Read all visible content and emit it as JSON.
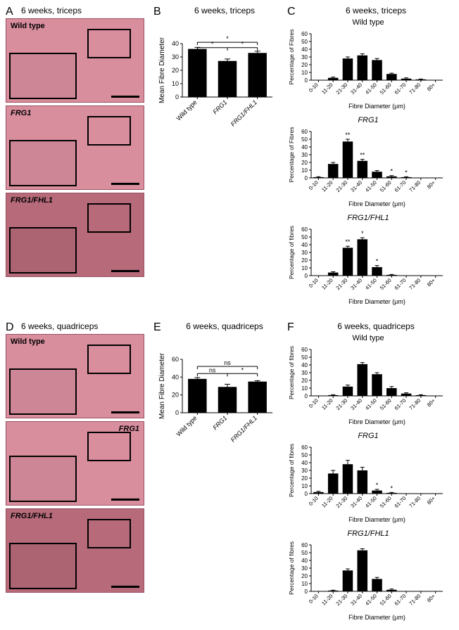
{
  "panels": {
    "A": {
      "letter": "A",
      "title": "6 weeks, triceps",
      "images": [
        {
          "label": "Wild type",
          "label_pos": "tl",
          "variant": "light"
        },
        {
          "label": "FRG1",
          "label_pos": "tl",
          "variant": "light",
          "italic": true
        },
        {
          "label": "FRG1/FHL1",
          "label_pos": "tl",
          "variant": "dark",
          "italic": true
        }
      ]
    },
    "B": {
      "letter": "B",
      "title": "6 weeks, triceps",
      "ylabel": "Mean Fibre Diameter",
      "ylim": [
        0,
        40
      ],
      "ytick_step": 10,
      "categories": [
        "Wild type",
        "FRG1",
        "FRG1/FHL1"
      ],
      "values": [
        36,
        27,
        33
      ],
      "errors": [
        1.2,
        1.5,
        1.3
      ],
      "bar_color": "#000000",
      "sig": [
        {
          "from": 0,
          "to": 1,
          "label": "*",
          "y": 37
        },
        {
          "from": 1,
          "to": 2,
          "label": "*",
          "y": 37
        },
        {
          "from": 0,
          "to": 2,
          "label": "*",
          "y": 41
        }
      ],
      "category_italic": [
        false,
        true,
        true
      ]
    },
    "C": {
      "letter": "C",
      "title": "6 weeks, triceps",
      "xlabel": "Fibre Diameter (μm)",
      "ylabel": "Percentage of Fibres",
      "bins": [
        "0-10",
        "11-20",
        "21-30",
        "31-40",
        "41-50",
        "51-60",
        "61-70",
        "71-80",
        "80+"
      ],
      "ylim": [
        0,
        60
      ],
      "ytick_step": 10,
      "subs": [
        {
          "name": "Wild type",
          "italic": false,
          "values": [
            0,
            3,
            28,
            32,
            26,
            8,
            2,
            1,
            0
          ],
          "errors": [
            0,
            1,
            2,
            2,
            2,
            1,
            1,
            0.5,
            0
          ],
          "sig": []
        },
        {
          "name": "FRG1",
          "italic": true,
          "values": [
            1,
            18,
            47,
            22,
            8,
            2,
            1,
            0,
            0
          ],
          "errors": [
            0.5,
            2,
            3,
            2,
            1.5,
            1,
            0.5,
            0,
            0
          ],
          "sig": [
            {
              "bin": 2,
              "label": "**"
            },
            {
              "bin": 3,
              "label": "**"
            },
            {
              "bin": 5,
              "label": "*"
            },
            {
              "bin": 6,
              "label": "*"
            }
          ],
          "ylabel": "Percentage of Fibres"
        },
        {
          "name": "FRG1/FHL1",
          "italic": true,
          "values": [
            0,
            4,
            36,
            47,
            11,
            1,
            0,
            0,
            0
          ],
          "errors": [
            0,
            1,
            2,
            2,
            2,
            0.5,
            0,
            0,
            0
          ],
          "sig": [
            {
              "bin": 2,
              "label": "**"
            },
            {
              "bin": 3,
              "label": "*"
            },
            {
              "bin": 4,
              "label": "*"
            }
          ],
          "ylabel": "Percentage of fibres"
        }
      ]
    },
    "D": {
      "letter": "D",
      "title": "6 weeks, quadriceps",
      "images": [
        {
          "label": "Wild type",
          "label_pos": "tl",
          "variant": "light"
        },
        {
          "label": "FRG1",
          "label_pos": "tr",
          "variant": "light",
          "italic": true
        },
        {
          "label": "FRG1/FHL1",
          "label_pos": "tl",
          "variant": "dark",
          "italic": true
        }
      ]
    },
    "E": {
      "letter": "E",
      "title": "6 weeks, quadriceps",
      "ylabel": "Mean Fibre Diameter",
      "ylim": [
        0,
        60
      ],
      "ytick_step": 20,
      "categories": [
        "Wild type",
        "FRG1",
        "FRG1/FHL1"
      ],
      "values": [
        38,
        29,
        35
      ],
      "errors": [
        1.5,
        3,
        1
      ],
      "bar_color": "#000000",
      "sig": [
        {
          "from": 0,
          "to": 1,
          "label": "ns",
          "y": 44
        },
        {
          "from": 1,
          "to": 2,
          "label": "*",
          "y": 44
        },
        {
          "from": 0,
          "to": 2,
          "label": "ns",
          "y": 52
        }
      ],
      "category_italic": [
        false,
        true,
        true
      ]
    },
    "F": {
      "letter": "F",
      "title": "6 weeks, quadriceps",
      "xlabel": "Fibre Diameter (μm)",
      "ylabel": "Percentage of fibres",
      "bins": [
        "0-10",
        "11-20",
        "21-30",
        "31-40",
        "41-50",
        "51-60",
        "61-70",
        "71-80",
        "80+"
      ],
      "ylim": [
        0,
        60
      ],
      "ytick_step": 10,
      "subs": [
        {
          "name": "Wild type",
          "italic": false,
          "values": [
            0,
            1,
            12,
            41,
            28,
            10,
            3,
            1,
            0
          ],
          "errors": [
            0,
            0.5,
            2,
            2,
            2,
            2,
            1,
            0.5,
            0
          ],
          "sig": []
        },
        {
          "name": "FRG1",
          "italic": true,
          "values": [
            2,
            26,
            38,
            30,
            4,
            1,
            0,
            0,
            0
          ],
          "errors": [
            1,
            4,
            5,
            4,
            1.5,
            0.5,
            0,
            0,
            0
          ],
          "sig": [
            {
              "bin": 4,
              "label": "*"
            },
            {
              "bin": 5,
              "label": "*"
            }
          ]
        },
        {
          "name": "FRG1/FHL1",
          "italic": true,
          "values": [
            0,
            1,
            27,
            53,
            16,
            2,
            0,
            0,
            0
          ],
          "errors": [
            0,
            0.5,
            2,
            2,
            2,
            1,
            0,
            0,
            0
          ],
          "sig": []
        }
      ]
    }
  },
  "style": {
    "bar_color": "#000000",
    "axis_color": "#000000",
    "bg": "#ffffff",
    "font": "Arial",
    "label_fontsize": 9,
    "axis_fontsize": 9
  }
}
